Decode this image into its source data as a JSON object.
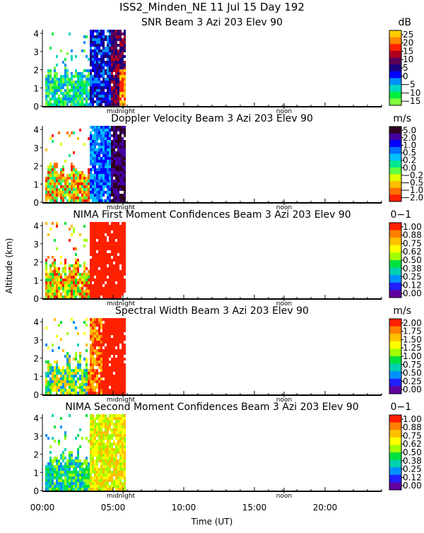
{
  "main_title": "ISS2_Minden_NE  11 Jul 15 Day 192",
  "ylabel": "Altitude (km)",
  "xlabel": "Time (UT)",
  "x_ticks": [
    "00:00",
    "05:00",
    "10:00",
    "15:00",
    "20:00"
  ],
  "y_ticks": [
    "0",
    "1",
    "2",
    "3",
    "4"
  ],
  "marker_labels": {
    "midnight": "midnight",
    "noon": "noon"
  },
  "chart_data": [
    {
      "type": "heatmap",
      "title": "SNR Beam 3 Azi 203 Elev 90",
      "unit": "dB",
      "xlim": [
        0,
        24
      ],
      "ylim": [
        0,
        4.2
      ],
      "data_coverage_hours": [
        0.2,
        5.9
      ],
      "colorbar": {
        "labels": [
          "25",
          "20",
          "15",
          "10",
          "5",
          "0",
          "−5",
          "−10",
          "−15"
        ],
        "colors": [
          "#ffcc00",
          "#ff8800",
          "#ff2200",
          "#b00020",
          "#5a0058",
          "#1a0080",
          "#0000ff",
          "#0090ff",
          "#00d8c0",
          "#00ee40",
          "#80ff40"
        ]
      }
    },
    {
      "type": "heatmap",
      "title": "Doppler Velocity Beam 3 Azi 203 Elev 90",
      "unit": "m/s",
      "xlim": [
        0,
        24
      ],
      "ylim": [
        0,
        4.2
      ],
      "data_coverage_hours": [
        0.2,
        5.9
      ],
      "colorbar": {
        "labels": [
          "5.0",
          "2.0",
          "1.0",
          "0.5",
          "0.2",
          "0.0",
          "−0.2",
          "−0.5",
          "−1.0",
          "−2.0"
        ],
        "colors": [
          "#300020",
          "#4400a0",
          "#0000ff",
          "#0070ff",
          "#00c0ff",
          "#00e890",
          "#60ff40",
          "#e0ff00",
          "#ffc000",
          "#ff7000",
          "#ff2000"
        ]
      }
    },
    {
      "type": "heatmap",
      "title": "NIMA First Moment Confidences Beam 3 Azi 203 Elev 90",
      "unit": "0−1",
      "xlim": [
        0,
        24
      ],
      "ylim": [
        0,
        4.2
      ],
      "data_coverage_hours": [
        0.2,
        5.9
      ],
      "colorbar": {
        "labels": [
          "1.00",
          "0.88",
          "0.75",
          "0.62",
          "0.50",
          "0.38",
          "0.25",
          "0.12",
          "0.00"
        ],
        "colors": [
          "#ff2000",
          "#ff8000",
          "#ffc000",
          "#ffff00",
          "#a0ff00",
          "#00e040",
          "#00d0b0",
          "#0090ff",
          "#2020ff",
          "#6000a0"
        ]
      }
    },
    {
      "type": "heatmap",
      "title": "Spectral Width Beam 3 Azi 203 Elev 90",
      "unit": "m/s",
      "xlim": [
        0,
        24
      ],
      "ylim": [
        0,
        4.2
      ],
      "data_coverage_hours": [
        0.2,
        5.9
      ],
      "colorbar": {
        "labels": [
          "2.00",
          "1.75",
          "1.50",
          "1.25",
          "1.00",
          "0.75",
          "0.50",
          "0.25",
          "0.00"
        ],
        "colors": [
          "#ff2000",
          "#ff8000",
          "#ffc000",
          "#ffff00",
          "#a0ff00",
          "#00e040",
          "#00d0b0",
          "#0090ff",
          "#2020ff",
          "#6000a0"
        ]
      }
    },
    {
      "type": "heatmap",
      "title": "NIMA Second Moment Confidences Beam 3 Azi 203 Elev 90",
      "unit": "0−1",
      "xlim": [
        0,
        24
      ],
      "ylim": [
        0,
        4.2
      ],
      "data_coverage_hours": [
        0.2,
        5.9
      ],
      "colorbar": {
        "labels": [
          "1.00",
          "0.88",
          "0.75",
          "0.62",
          "0.50",
          "0.38",
          "0.25",
          "0.12",
          "0.00"
        ],
        "colors": [
          "#ff2000",
          "#ff8000",
          "#ffc000",
          "#ffff00",
          "#a0ff00",
          "#00e040",
          "#00d0b0",
          "#0090ff",
          "#2020ff",
          "#6000a0"
        ]
      }
    }
  ]
}
